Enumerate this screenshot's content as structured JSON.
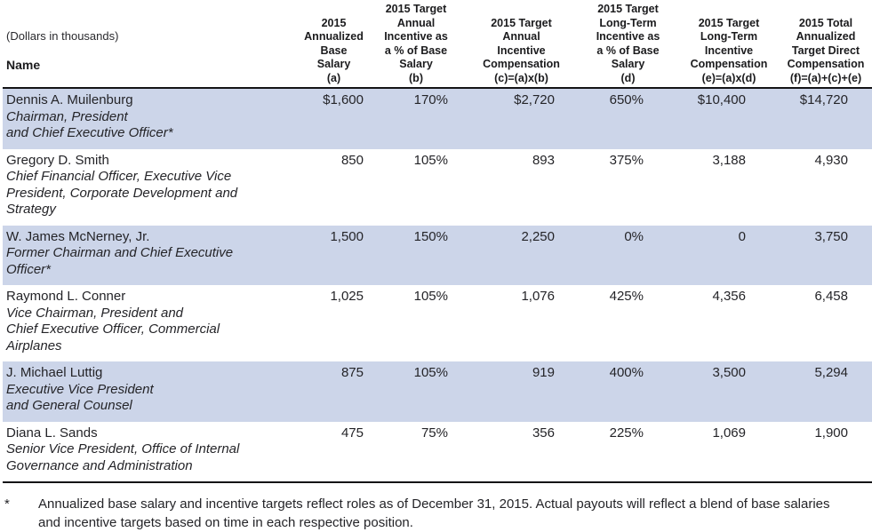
{
  "table": {
    "corner": {
      "note": "(Dollars in thousands)",
      "label": "Name"
    },
    "columns": [
      {
        "lines": [
          "2015",
          "Annualized",
          "Base",
          "Salary",
          "(a)"
        ]
      },
      {
        "lines": [
          "2015 Target",
          "Annual",
          "Incentive as",
          "a % of Base",
          "Salary",
          "(b)"
        ]
      },
      {
        "lines": [
          "2015 Target",
          "Annual",
          "Incentive",
          "Compensation",
          "(c)=(a)x(b)"
        ]
      },
      {
        "lines": [
          "2015 Target",
          "Long-Term",
          "Incentive as",
          "a % of Base",
          "Salary",
          "(d)"
        ]
      },
      {
        "lines": [
          "2015 Target",
          "Long-Term",
          "Incentive",
          "Compensation",
          "(e)=(a)x(d)"
        ]
      },
      {
        "lines": [
          "2015 Total",
          "Annualized",
          "Target Direct",
          "Compensation",
          "(f)=(a)+(c)+(e)"
        ]
      }
    ],
    "rows": [
      {
        "name": "Dennis A. Muilenburg",
        "title_lines": [
          "Chairman, President",
          "and Chief Executive Officer*"
        ],
        "values": [
          "$1,600",
          "170%",
          "$2,720",
          "650%",
          "$10,400",
          "$14,720"
        ],
        "highlighted": true
      },
      {
        "name": "Gregory D. Smith",
        "title_lines": [
          "Chief Financial Officer, Executive Vice",
          "President, Corporate Development and",
          "Strategy"
        ],
        "values": [
          "850",
          "105%",
          "893",
          "375%",
          "3,188",
          "4,930"
        ],
        "highlighted": false
      },
      {
        "name": "W. James McNerney, Jr.",
        "title_lines": [
          "Former Chairman and Chief Executive",
          "Officer*"
        ],
        "values": [
          "1,500",
          "150%",
          "2,250",
          "0%",
          "0",
          "3,750"
        ],
        "highlighted": true
      },
      {
        "name": "Raymond L. Conner",
        "title_lines": [
          "Vice Chairman, President and",
          "Chief Executive Officer, Commercial",
          "Airplanes"
        ],
        "values": [
          "1,025",
          "105%",
          "1,076",
          "425%",
          "4,356",
          "6,458"
        ],
        "highlighted": false
      },
      {
        "name": "J. Michael Luttig",
        "title_lines": [
          "Executive Vice President",
          "and General Counsel"
        ],
        "values": [
          "875",
          "105%",
          "919",
          "400%",
          "3,500",
          "5,294"
        ],
        "highlighted": true
      },
      {
        "name": "Diana L. Sands",
        "title_lines": [
          "Senior Vice President, Office of Internal",
          "Governance and Administration"
        ],
        "values": [
          "475",
          "75%",
          "356",
          "225%",
          "1,069",
          "1,900"
        ],
        "highlighted": false
      }
    ],
    "highlight_color": "#ccd5e9"
  },
  "footnote": {
    "marker": "*",
    "lines": [
      "Annualized base salary and incentive targets reflect roles as of December 31, 2015. Actual payouts will reflect a blend of base salaries and incentive targets based on time in each respective position."
    ]
  }
}
